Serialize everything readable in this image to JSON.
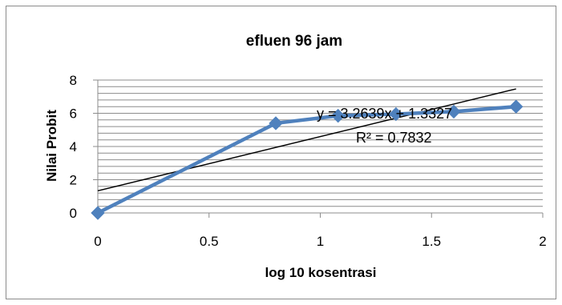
{
  "chart_data": {
    "type": "scatter",
    "title": "efluen 96 jam",
    "xlabel": "log 10 kosentrasi",
    "ylabel": "Nilai Probit",
    "xlim": [
      0,
      2
    ],
    "ylim": [
      0,
      8
    ],
    "x_ticks": [
      "0",
      "0.5",
      "1",
      "1.5",
      "2"
    ],
    "y_ticks": [
      "0",
      "2",
      "4",
      "6",
      "8"
    ],
    "x_tick_values": [
      0,
      0.5,
      1,
      1.5,
      2
    ],
    "y_tick_values": [
      0,
      2,
      4,
      6,
      8
    ],
    "grid": true,
    "minor_y_step": 0.4,
    "series": [
      {
        "x": [
          0,
          0.8,
          1.08,
          1.34,
          1.6,
          1.88
        ],
        "y": [
          0,
          5.4,
          5.85,
          5.95,
          6.1,
          6.4
        ],
        "color": "#4f81bd",
        "marker": "diamond"
      }
    ],
    "trendline": {
      "slope": 3.2639,
      "intercept": 1.3327,
      "x_range": [
        0,
        1.88
      ],
      "color": "#000000"
    },
    "annotations": {
      "equation": "y = 3.2639x + 1.3327",
      "r_squared": "R² = 0.7832"
    }
  }
}
